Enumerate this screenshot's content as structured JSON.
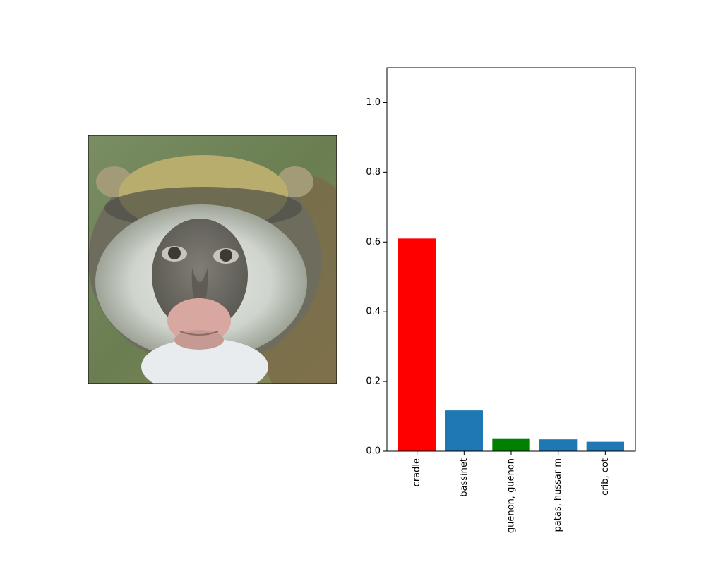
{
  "chart_data": {
    "type": "bar",
    "categories": [
      "cradle",
      "bassinet",
      "guenon, guenon",
      "patas, hussar m",
      "crib, cot"
    ],
    "values": [
      0.61,
      0.117,
      0.037,
      0.034,
      0.027
    ],
    "bar_colors": [
      "#ff0000",
      "#1f77b4",
      "#008000",
      "#1f77b4",
      "#1f77b4"
    ],
    "ylim": [
      0,
      1.1
    ],
    "yticks": [
      0.0,
      0.2,
      0.4,
      0.6,
      0.8,
      1.0
    ],
    "ytick_labels": [
      "0.0",
      "0.2",
      "0.4",
      "0.6",
      "0.8",
      "1.0"
    ],
    "title": "",
    "xlabel": "",
    "ylabel": "",
    "grid": false
  },
  "image_panel": {
    "subject": "monkey-face-photo",
    "colors": {
      "background": "#6f8656",
      "fur_dark": "#4c4d45",
      "fur_light": "#d9ddd7",
      "crown": "#b5ab6a",
      "face": "#6d6b65",
      "muzzle": "#d8a7a0",
      "eye": "#3c3a34"
    }
  }
}
